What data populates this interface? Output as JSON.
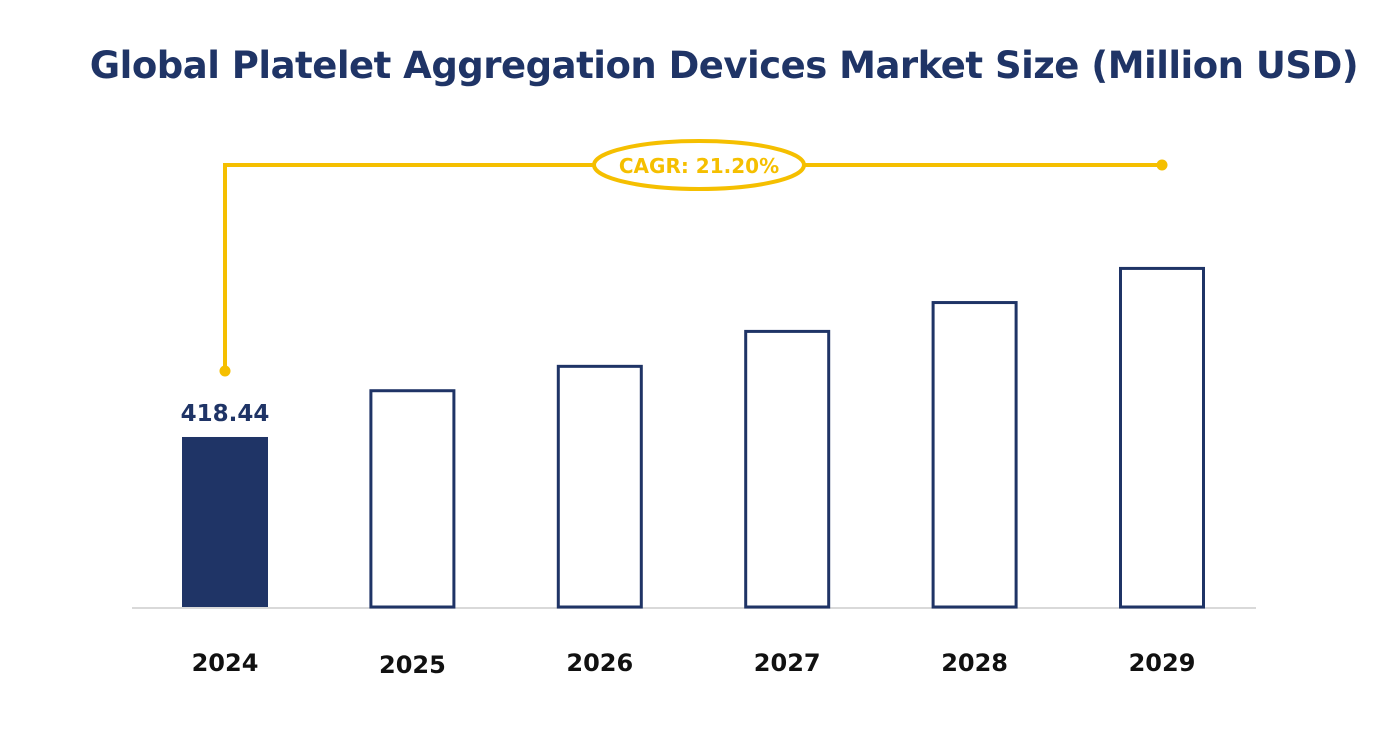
{
  "chart_data": {
    "type": "bar",
    "title": "Global Platelet Aggregation Devices Market Size (Million USD)",
    "categories": [
      "2024",
      "2025",
      "2026",
      "2027",
      "2028",
      "2029"
    ],
    "values": [
      418.44,
      536,
      596,
      682,
      753,
      837
    ],
    "data_labels": [
      "418.44",
      "",
      "",
      "",
      "",
      ""
    ],
    "annotation": "CAGR: 21.20%",
    "xlabel": "",
    "ylabel": "",
    "ylim": [
      0,
      1174
    ],
    "grid": false,
    "legend": "none",
    "colors": {
      "bar": "#1f3466",
      "highlight_fill": "#1f3466",
      "outline_fill": "#ffffff",
      "cagr": "#f5bf00",
      "baseline": "#d9d9d9",
      "text": "#1f3466",
      "tick_text": "#111111"
    }
  }
}
